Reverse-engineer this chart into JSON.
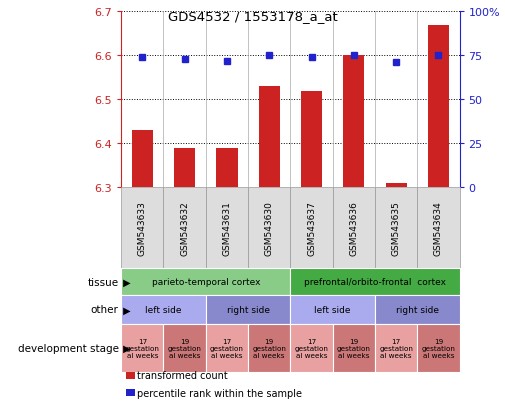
{
  "title": "GDS4532 / 1553178_a_at",
  "samples": [
    "GSM543633",
    "GSM543632",
    "GSM543631",
    "GSM543630",
    "GSM543637",
    "GSM543636",
    "GSM543635",
    "GSM543634"
  ],
  "bar_values": [
    6.43,
    6.39,
    6.39,
    6.53,
    6.52,
    6.6,
    6.31,
    6.67
  ],
  "bar_base": 6.3,
  "percentile_values": [
    74,
    73,
    72,
    75,
    74,
    75,
    71,
    75
  ],
  "ylim": [
    6.3,
    6.7
  ],
  "y2lim": [
    0,
    100
  ],
  "yticks": [
    6.3,
    6.4,
    6.5,
    6.6,
    6.7
  ],
  "y2ticks": [
    0,
    25,
    50,
    75,
    100
  ],
  "bar_color": "#cc2222",
  "dot_color": "#2222cc",
  "tissue_groups": [
    {
      "label": "parieto-temporal cortex",
      "span": [
        0,
        4
      ],
      "color": "#88cc88"
    },
    {
      "label": "prefrontal/orbito-frontal  cortex",
      "span": [
        4,
        8
      ],
      "color": "#44aa44"
    }
  ],
  "other_groups": [
    {
      "label": "left side",
      "span": [
        0,
        2
      ],
      "color": "#aaaaee"
    },
    {
      "label": "right side",
      "span": [
        2,
        4
      ],
      "color": "#8888cc"
    },
    {
      "label": "left side",
      "span": [
        4,
        6
      ],
      "color": "#aaaaee"
    },
    {
      "label": "right side",
      "span": [
        6,
        8
      ],
      "color": "#8888cc"
    }
  ],
  "dev_groups": [
    {
      "label": "17\ngestation\nal weeks",
      "span": [
        0,
        1
      ],
      "color": "#e8a0a0"
    },
    {
      "label": "19\ngestation\nal weeks",
      "span": [
        1,
        2
      ],
      "color": "#cc7777"
    },
    {
      "label": "17\ngestation\nal weeks",
      "span": [
        2,
        3
      ],
      "color": "#e8a0a0"
    },
    {
      "label": "19\ngestation\nal weeks",
      "span": [
        3,
        4
      ],
      "color": "#cc7777"
    },
    {
      "label": "17\ngestation\nal weeks",
      "span": [
        4,
        5
      ],
      "color": "#e8a0a0"
    },
    {
      "label": "19\ngestation\nal weeks",
      "span": [
        5,
        6
      ],
      "color": "#cc7777"
    },
    {
      "label": "17\ngestation\nal weeks",
      "span": [
        6,
        7
      ],
      "color": "#e8a0a0"
    },
    {
      "label": "19\ngestation\nal weeks",
      "span": [
        7,
        8
      ],
      "color": "#cc7777"
    }
  ],
  "row_labels": [
    "tissue",
    "other",
    "development stage"
  ],
  "legend_items": [
    {
      "label": "transformed count",
      "color": "#cc2222"
    },
    {
      "label": "percentile rank within the sample",
      "color": "#2222cc"
    }
  ],
  "ylabel_color": "#cc2222",
  "y2label_color": "#2222cc",
  "sample_box_color": "#dddddd",
  "sample_box_border": "#999999"
}
